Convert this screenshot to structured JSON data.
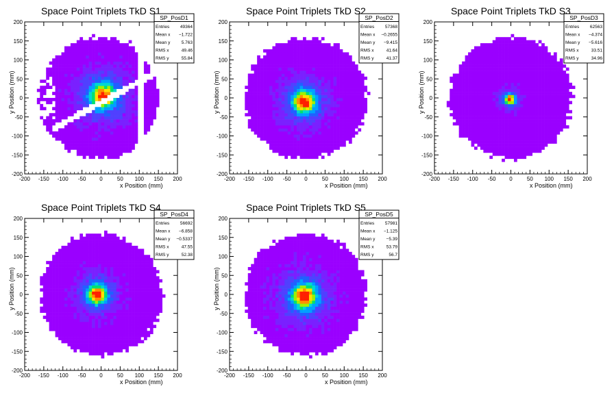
{
  "chart_data": [
    {
      "type": "heatmap",
      "title": "Space Point Triplets TkD S1",
      "xlabel": "x Position (mm)",
      "ylabel": "y Position (mm)",
      "xlim": [
        -200,
        200
      ],
      "ylim": [
        -200,
        200
      ],
      "xticks": [
        -200,
        -150,
        -100,
        -50,
        0,
        50,
        100,
        150,
        200
      ],
      "yticks": [
        -200,
        -150,
        -100,
        -50,
        0,
        50,
        100,
        150,
        200
      ],
      "stats": {
        "name": "SP_PosD1",
        "rows": [
          {
            "label": "Entries",
            "value": "49364"
          },
          {
            "label": "Mean x",
            "value": "−1.722"
          },
          {
            "label": "Mean y",
            "value": "5.763"
          },
          {
            "label": "RMS x",
            "value": "49.46"
          },
          {
            "label": "RMS y",
            "value": "55.84"
          }
        ]
      },
      "mean_x": -1.722,
      "mean_y": 5.763,
      "rms_x": 49.46,
      "rms_y": 55.84,
      "peak": [
        5,
        5
      ],
      "core_rms": 22,
      "radius": 160,
      "gap": true
    },
    {
      "type": "heatmap",
      "title": "Space Point Triplets TkD S2",
      "xlabel": "x Position (mm)",
      "ylabel": "y Position (mm)",
      "xlim": [
        -200,
        200
      ],
      "ylim": [
        -200,
        200
      ],
      "xticks": [
        -200,
        -150,
        -100,
        -50,
        0,
        50,
        100,
        150,
        200
      ],
      "yticks": [
        -200,
        -150,
        -100,
        -50,
        0,
        50,
        100,
        150,
        200
      ],
      "stats": {
        "name": "SP_PosD2",
        "rows": [
          {
            "label": "Entries",
            "value": "57368"
          },
          {
            "label": "Mean x",
            "value": "−0.2655"
          },
          {
            "label": "Mean y",
            "value": "−9.415"
          },
          {
            "label": "RMS x",
            "value": "41.64"
          },
          {
            "label": "RMS y",
            "value": "41.37"
          }
        ]
      },
      "mean_x": -0.2655,
      "mean_y": -9.415,
      "rms_x": 41.64,
      "rms_y": 41.37,
      "peak": [
        -5,
        -10
      ],
      "core_rms": 20,
      "radius": 160,
      "gap": false
    },
    {
      "type": "heatmap",
      "title": "Space Point Triplets TkD S3",
      "xlabel": "x Position (mm)",
      "ylabel": "y Position (mm)",
      "xlim": [
        -200,
        200
      ],
      "ylim": [
        -200,
        200
      ],
      "xticks": [
        -200,
        -150,
        -100,
        -50,
        0,
        50,
        100,
        150,
        200
      ],
      "yticks": [
        -200,
        -150,
        -100,
        -50,
        0,
        50,
        100,
        150,
        200
      ],
      "stats": {
        "name": "SP_PosD3",
        "rows": [
          {
            "label": "Entries",
            "value": "62563"
          },
          {
            "label": "Mean x",
            "value": "−4.374"
          },
          {
            "label": "Mean y",
            "value": "−5.616"
          },
          {
            "label": "RMS x",
            "value": "33.51"
          },
          {
            "label": "RMS y",
            "value": "34.96"
          }
        ]
      },
      "mean_x": -4.374,
      "mean_y": -5.616,
      "rms_x": 33.51,
      "rms_y": 34.96,
      "peak": [
        -3,
        -3
      ],
      "core_rms": 9,
      "radius": 160,
      "gap": false
    },
    {
      "type": "heatmap",
      "title": "Space Point Triplets TkD S4",
      "xlabel": "x Position (mm)",
      "ylabel": "y Position (mm)",
      "xlim": [
        -200,
        200
      ],
      "ylim": [
        -200,
        200
      ],
      "xticks": [
        -200,
        -150,
        -100,
        -50,
        0,
        50,
        100,
        150,
        200
      ],
      "yticks": [
        -200,
        -150,
        -100,
        -50,
        0,
        50,
        100,
        150,
        200
      ],
      "stats": {
        "name": "SP_PosD4",
        "rows": [
          {
            "label": "Entries",
            "value": "56692"
          },
          {
            "label": "Mean x",
            "value": "−6.858"
          },
          {
            "label": "Mean y",
            "value": "−0.5337"
          },
          {
            "label": "RMS x",
            "value": "47.55"
          },
          {
            "label": "RMS y",
            "value": "52.38"
          }
        ]
      },
      "mean_x": -6.858,
      "mean_y": -0.5337,
      "rms_x": 47.55,
      "rms_y": 52.38,
      "peak": [
        -10,
        0
      ],
      "core_rms": 17,
      "radius": 160,
      "gap": false
    },
    {
      "type": "heatmap",
      "title": "Space Point Triplets TkD S5",
      "xlabel": "x Position (mm)",
      "ylabel": "y Position (mm)",
      "xlim": [
        -200,
        200
      ],
      "ylim": [
        -200,
        200
      ],
      "xticks": [
        -200,
        -150,
        -100,
        -50,
        0,
        50,
        100,
        150,
        200
      ],
      "yticks": [
        -200,
        -150,
        -100,
        -50,
        0,
        50,
        100,
        150,
        200
      ],
      "stats": {
        "name": "SP_PosD5",
        "rows": [
          {
            "label": "Entries",
            "value": "57981"
          },
          {
            "label": "Mean x",
            "value": "−1.125"
          },
          {
            "label": "Mean y",
            "value": "−5.39"
          },
          {
            "label": "RMS x",
            "value": "53.79"
          },
          {
            "label": "RMS y",
            "value": "56.7"
          }
        ]
      },
      "mean_x": -1.125,
      "mean_y": -5.39,
      "rms_x": 53.79,
      "rms_y": 56.7,
      "peak": [
        -5,
        -5
      ],
      "core_rms": 22,
      "radius": 160,
      "gap": false
    }
  ],
  "colors": {
    "palette": [
      "#9a00ff",
      "#7a20ff",
      "#5040ff",
      "#2060ff",
      "#00a0ff",
      "#00d8d0",
      "#00e070",
      "#a0f000",
      "#ffe000",
      "#ff9000",
      "#ff2000"
    ],
    "axis": "#000000",
    "background": "#ffffff"
  }
}
